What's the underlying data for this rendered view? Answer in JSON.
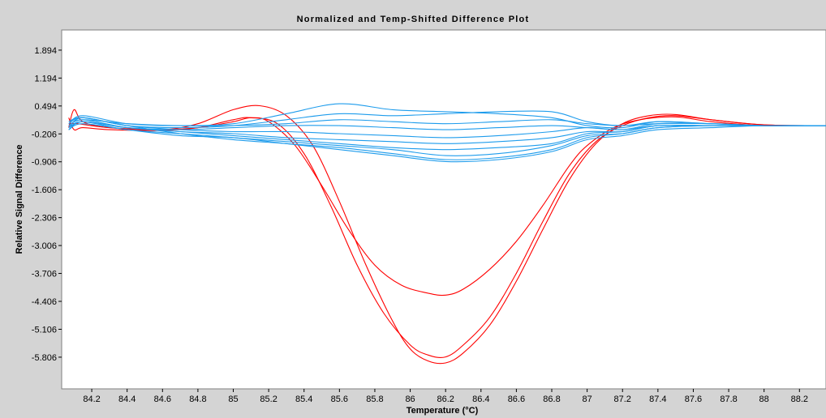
{
  "chart_data": {
    "type": "line",
    "title": "Normalized and Temp-Shifted Difference Plot",
    "xlabel": "Temperature (°C)",
    "ylabel": "Relative Signal Difference",
    "xlim": [
      84.03,
      88.35
    ],
    "ylim": [
      -6.6,
      2.4
    ],
    "x_ticks": [
      "84.2",
      "84.4",
      "84.6",
      "84.8",
      "85",
      "85.2",
      "85.4",
      "85.6",
      "85.8",
      "86",
      "86.2",
      "86.4",
      "86.6",
      "86.8",
      "87",
      "87.2",
      "87.4",
      "87.6",
      "87.8",
      "88",
      "88.2"
    ],
    "y_ticks": [
      "1.894",
      "1.194",
      "0.494",
      "-0.206",
      "-0.906",
      "-1.606",
      "-2.306",
      "-3.006",
      "-3.706",
      "-4.406",
      "-5.106",
      "-5.806"
    ],
    "grid": false,
    "legend": "none",
    "colors": {
      "red": "#ff0000",
      "blue": "#1e9cec",
      "background": "#ffffff",
      "frame": "#d4d4d4"
    },
    "series": [
      {
        "color": "#ff0000",
        "x": [
          84.07,
          84.1,
          84.15,
          84.3,
          84.6,
          84.8,
          85.0,
          85.15,
          85.3,
          85.45,
          85.6,
          85.75,
          85.9,
          86.0,
          86.1,
          86.2,
          86.3,
          86.45,
          86.6,
          86.75,
          86.9,
          87.05,
          87.2,
          87.35,
          87.5,
          87.7,
          88.0,
          88.35
        ],
        "y": [
          -0.05,
          0.4,
          0.1,
          -0.05,
          -0.1,
          0.05,
          0.4,
          0.5,
          0.25,
          -0.5,
          -1.9,
          -3.5,
          -4.9,
          -5.6,
          -5.9,
          -5.95,
          -5.7,
          -5.0,
          -3.9,
          -2.6,
          -1.35,
          -0.45,
          0.05,
          0.25,
          0.28,
          0.15,
          0.02,
          0.0
        ]
      },
      {
        "color": "#ff0000",
        "x": [
          84.07,
          84.1,
          84.15,
          84.3,
          84.6,
          84.8,
          85.0,
          85.1,
          85.25,
          85.4,
          85.55,
          85.7,
          85.85,
          86.0,
          86.1,
          86.2,
          86.3,
          86.45,
          86.6,
          86.75,
          86.9,
          87.05,
          87.2,
          87.35,
          87.5,
          87.7,
          88.0,
          88.35
        ],
        "y": [
          0.2,
          -0.1,
          -0.05,
          -0.1,
          -0.12,
          -0.05,
          0.15,
          0.2,
          0.05,
          -0.7,
          -2.0,
          -3.5,
          -4.7,
          -5.5,
          -5.75,
          -5.8,
          -5.5,
          -4.8,
          -3.7,
          -2.4,
          -1.2,
          -0.4,
          0.0,
          0.2,
          0.25,
          0.15,
          0.02,
          0.0
        ]
      },
      {
        "color": "#ff0000",
        "x": [
          84.07,
          84.12,
          84.3,
          84.6,
          84.8,
          85.0,
          85.1,
          85.2,
          85.35,
          85.5,
          85.65,
          85.8,
          85.95,
          86.1,
          86.2,
          86.3,
          86.45,
          86.6,
          86.75,
          86.9,
          87.0,
          87.15,
          87.3,
          87.5,
          87.7,
          88.0,
          88.35
        ],
        "y": [
          0.05,
          0.05,
          -0.05,
          -0.1,
          -0.05,
          0.1,
          0.2,
          0.1,
          -0.5,
          -1.5,
          -2.6,
          -3.5,
          -4.0,
          -4.2,
          -4.25,
          -4.1,
          -3.6,
          -2.9,
          -2.0,
          -1.0,
          -0.5,
          -0.05,
          0.15,
          0.22,
          0.1,
          0.0,
          0.0
        ]
      },
      {
        "color": "#1e9cec",
        "x": [
          84.07,
          84.15,
          84.4,
          84.7,
          85.0,
          85.3,
          85.6,
          85.9,
          86.2,
          86.5,
          86.8,
          87.0,
          87.2,
          87.4,
          87.7,
          88.0,
          88.35
        ],
        "y": [
          0.05,
          0.25,
          0.05,
          0.0,
          0.05,
          0.3,
          0.55,
          0.4,
          0.35,
          0.3,
          0.2,
          0.0,
          -0.05,
          0.1,
          0.05,
          0.0,
          0.0
        ]
      },
      {
        "color": "#1e9cec",
        "x": [
          84.07,
          84.15,
          84.4,
          84.7,
          85.0,
          85.3,
          85.6,
          85.9,
          86.2,
          86.5,
          86.8,
          87.0,
          87.2,
          87.4,
          87.7,
          88.0,
          88.35
        ],
        "y": [
          -0.05,
          0.2,
          0.0,
          -0.05,
          0.0,
          0.15,
          0.3,
          0.25,
          0.3,
          0.35,
          0.35,
          0.1,
          0.0,
          0.1,
          0.05,
          0.0,
          0.0
        ]
      },
      {
        "color": "#1e9cec",
        "x": [
          84.07,
          84.15,
          84.4,
          84.7,
          85.0,
          85.3,
          85.6,
          85.9,
          86.2,
          86.5,
          86.8,
          87.0,
          87.2,
          87.4,
          87.7,
          88.0,
          88.35
        ],
        "y": [
          0.0,
          0.15,
          0.05,
          0.0,
          0.0,
          0.05,
          0.15,
          0.1,
          0.05,
          0.1,
          0.15,
          0.05,
          0.0,
          0.05,
          0.05,
          0.0,
          0.0
        ]
      },
      {
        "color": "#1e9cec",
        "x": [
          84.07,
          84.15,
          84.4,
          84.7,
          85.0,
          85.3,
          85.6,
          85.9,
          86.2,
          86.5,
          86.8,
          87.0,
          87.2,
          87.4,
          87.7,
          88.0,
          88.35
        ],
        "y": [
          -0.1,
          0.1,
          -0.05,
          -0.1,
          -0.05,
          0.0,
          0.0,
          -0.05,
          -0.1,
          -0.05,
          0.0,
          -0.05,
          -0.1,
          0.0,
          0.0,
          0.0,
          0.0
        ]
      },
      {
        "color": "#1e9cec",
        "x": [
          84.07,
          84.15,
          84.4,
          84.7,
          85.0,
          85.3,
          85.6,
          85.9,
          86.2,
          86.5,
          86.8,
          87.0,
          87.2,
          87.4,
          87.7,
          88.0,
          88.35
        ],
        "y": [
          0.05,
          0.2,
          0.0,
          -0.1,
          -0.15,
          -0.15,
          -0.2,
          -0.25,
          -0.3,
          -0.25,
          -0.15,
          -0.05,
          -0.1,
          0.05,
          0.05,
          0.0,
          0.0
        ]
      },
      {
        "color": "#1e9cec",
        "x": [
          84.07,
          84.15,
          84.4,
          84.7,
          85.0,
          85.3,
          85.6,
          85.9,
          86.2,
          86.5,
          86.8,
          87.0,
          87.2,
          87.4,
          87.7,
          88.0,
          88.35
        ],
        "y": [
          -0.1,
          0.1,
          -0.05,
          -0.15,
          -0.2,
          -0.3,
          -0.35,
          -0.4,
          -0.45,
          -0.4,
          -0.3,
          -0.15,
          -0.15,
          0.0,
          0.0,
          0.0,
          0.0
        ]
      },
      {
        "color": "#1e9cec",
        "x": [
          84.07,
          84.15,
          84.4,
          84.7,
          85.0,
          85.3,
          85.6,
          85.9,
          86.2,
          86.5,
          86.8,
          87.0,
          87.2,
          87.4,
          87.7,
          88.0,
          88.35
        ],
        "y": [
          0.0,
          0.15,
          -0.05,
          -0.15,
          -0.25,
          -0.35,
          -0.45,
          -0.55,
          -0.6,
          -0.55,
          -0.45,
          -0.2,
          -0.15,
          0.0,
          0.0,
          0.0,
          0.0
        ]
      },
      {
        "color": "#1e9cec",
        "x": [
          84.07,
          84.15,
          84.4,
          84.7,
          85.0,
          85.3,
          85.6,
          85.9,
          86.2,
          86.5,
          86.8,
          87.0,
          87.2,
          87.4,
          87.7,
          88.0,
          88.35
        ],
        "y": [
          -0.05,
          0.1,
          -0.1,
          -0.2,
          -0.3,
          -0.4,
          -0.5,
          -0.6,
          -0.75,
          -0.7,
          -0.5,
          -0.25,
          -0.2,
          -0.05,
          0.0,
          0.0,
          0.0
        ]
      },
      {
        "color": "#1e9cec",
        "x": [
          84.07,
          84.15,
          84.4,
          84.7,
          85.0,
          85.3,
          85.6,
          85.9,
          86.2,
          86.5,
          86.8,
          87.0,
          87.2,
          87.4,
          87.7,
          88.0,
          88.35
        ],
        "y": [
          0.1,
          0.2,
          0.0,
          -0.2,
          -0.35,
          -0.45,
          -0.55,
          -0.7,
          -0.85,
          -0.8,
          -0.6,
          -0.3,
          -0.2,
          -0.05,
          0.0,
          0.0,
          0.0
        ]
      },
      {
        "color": "#1e9cec",
        "x": [
          84.07,
          84.15,
          84.4,
          84.7,
          85.0,
          85.3,
          85.6,
          85.9,
          86.2,
          86.5,
          86.8,
          87.0,
          87.2,
          87.4,
          87.7,
          88.0,
          88.35
        ],
        "y": [
          -0.1,
          0.05,
          -0.1,
          -0.25,
          -0.3,
          -0.45,
          -0.6,
          -0.75,
          -0.9,
          -0.85,
          -0.65,
          -0.35,
          -0.25,
          -0.1,
          -0.05,
          0.0,
          0.0
        ]
      }
    ]
  }
}
